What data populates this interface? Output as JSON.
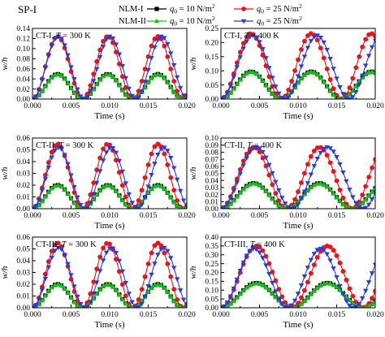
{
  "figure": {
    "title": "SP-I",
    "legend": {
      "row1_prefix": "NLM-I",
      "row2_prefix": "NLM-II",
      "entries": [
        {
          "label": "q0 = 10 N/m2",
          "model": "NLM-I",
          "color": "#000000",
          "marker": "square"
        },
        {
          "label": "q0 = 25 N/m2",
          "model": "NLM-I",
          "color": "#e8141b",
          "marker": "circle"
        },
        {
          "label": "q0 = 10 N/m2",
          "model": "NLM-II",
          "color": "#14c414",
          "marker": "triangle-up"
        },
        {
          "label": "q0 = 25 N/m2",
          "model": "NLM-II",
          "color": "#2a3bd8",
          "marker": "triangle-down"
        }
      ]
    },
    "ylabel": "w/h",
    "xlabel": "Time (s)"
  },
  "chart_data": [
    {
      "type": "line",
      "title": "CT-I, T = 300 K",
      "xlabel": "",
      "ylabel": "w/h",
      "xlim": [
        0,
        0.02
      ],
      "ylim": [
        0,
        0.15
      ],
      "xticks": [
        "0.000",
        "0.005",
        "0.010",
        "0.015",
        "0.020"
      ],
      "yticks": [
        "0.00",
        "0.02",
        "0.04",
        "0.06",
        "0.08",
        "0.10",
        "0.12",
        "0.14"
      ],
      "period_s": 0.0065,
      "series": [
        {
          "name": "NLM-I, q0 = 10 N/m2",
          "peak": 0.053,
          "period": 0.0065,
          "color": "#000000"
        },
        {
          "name": "NLM-I, q0 = 25 N/m2",
          "peak": 0.133,
          "period": 0.0065,
          "color": "#e8141b"
        },
        {
          "name": "NLM-II, q0 = 10 N/m2",
          "peak": 0.053,
          "period": 0.0065,
          "color": "#14c414"
        },
        {
          "name": "NLM-II, q0 = 25 N/m2",
          "peak": 0.133,
          "period": 0.0067,
          "color": "#2a3bd8"
        }
      ]
    },
    {
      "type": "line",
      "title": "CT-I, T = 400 K",
      "xlabel": "",
      "ylabel": "w/h",
      "xlim": [
        0,
        0.02
      ],
      "ylim": [
        0,
        0.25
      ],
      "xticks": [
        "0.000",
        "0.005",
        "0.010",
        "0.015",
        "0.020"
      ],
      "yticks": [
        "0.00",
        "0.05",
        "0.10",
        "0.15",
        "0.20",
        "0.25"
      ],
      "series": [
        {
          "name": "NLM-I, q0 = 10 N/m2",
          "peak": 0.097,
          "period": 0.0078,
          "color": "#000000"
        },
        {
          "name": "NLM-I, q0 = 25 N/m2",
          "peak": 0.232,
          "period": 0.0078,
          "color": "#e8141b"
        },
        {
          "name": "NLM-II, q0 = 10 N/m2",
          "peak": 0.097,
          "period": 0.0078,
          "color": "#14c414"
        },
        {
          "name": "NLM-II, q0 = 25 N/m2",
          "peak": 0.225,
          "period": 0.0083,
          "color": "#2a3bd8"
        }
      ]
    },
    {
      "type": "line",
      "title": "CT-II, T = 300 K",
      "xlabel": "",
      "ylabel": "w/h",
      "xlim": [
        0,
        0.02
      ],
      "ylim": [
        0,
        0.06
      ],
      "xticks": [
        "0.000",
        "0.005",
        "0.010",
        "0.015",
        "0.020"
      ],
      "yticks": [
        "0.00",
        "0.01",
        "0.02",
        "0.03",
        "0.04",
        "0.05",
        "0.06"
      ],
      "series": [
        {
          "name": "NLM-I, q0 = 10 N/m2",
          "peak": 0.02,
          "period": 0.0065,
          "color": "#000000"
        },
        {
          "name": "NLM-I, q0 = 25 N/m2",
          "peak": 0.055,
          "period": 0.0065,
          "color": "#e8141b"
        },
        {
          "name": "NLM-II, q0 = 10 N/m2",
          "peak": 0.02,
          "period": 0.0065,
          "color": "#14c414"
        },
        {
          "name": "NLM-II, q0 = 25 N/m2",
          "peak": 0.052,
          "period": 0.0068,
          "color": "#2a3bd8"
        }
      ]
    },
    {
      "type": "line",
      "title": "CT-II, T = 400 K",
      "xlabel": "",
      "ylabel": "w/h",
      "xlim": [
        0,
        0.02
      ],
      "ylim": [
        0,
        0.1
      ],
      "xticks": [
        "0.000",
        "0.005",
        "0.010",
        "0.015",
        "0.020"
      ],
      "yticks": [
        "0.00",
        "0.01",
        "0.02",
        "0.03",
        "0.04",
        "0.05",
        "0.06",
        "0.07",
        "0.08",
        "0.09",
        "0.10"
      ],
      "series": [
        {
          "name": "NLM-I, q0 = 10 N/m2",
          "peak": 0.036,
          "period": 0.0085,
          "color": "#000000"
        },
        {
          "name": "NLM-I, q0 = 25 N/m2",
          "peak": 0.087,
          "period": 0.0085,
          "color": "#e8141b"
        },
        {
          "name": "NLM-II, q0 = 10 N/m2",
          "peak": 0.036,
          "period": 0.0085,
          "color": "#14c414"
        },
        {
          "name": "NLM-II, q0 = 25 N/m2",
          "peak": 0.087,
          "period": 0.0092,
          "color": "#2a3bd8"
        }
      ]
    },
    {
      "type": "line",
      "title": "CT-III, T = 300 K",
      "xlabel": "Time (s)",
      "ylabel": "w/h",
      "xlim": [
        0,
        0.02
      ],
      "ylim": [
        0,
        0.06
      ],
      "xticks": [
        "0.000",
        "0.005",
        "0.010",
        "0.015",
        "0.020"
      ],
      "yticks": [
        "0.00",
        "0.01",
        "0.02",
        "0.03",
        "0.04",
        "0.05",
        "0.06"
      ],
      "series": [
        {
          "name": "NLM-I, q0 = 10 N/m2",
          "peak": 0.02,
          "period": 0.0065,
          "color": "#000000"
        },
        {
          "name": "NLM-I, q0 = 25 N/m2",
          "peak": 0.055,
          "period": 0.0065,
          "color": "#e8141b"
        },
        {
          "name": "NLM-II, q0 = 10 N/m2",
          "peak": 0.02,
          "period": 0.0065,
          "color": "#14c414"
        },
        {
          "name": "NLM-II, q0 = 25 N/m2",
          "peak": 0.051,
          "period": 0.0068,
          "color": "#2a3bd8"
        }
      ]
    },
    {
      "type": "line",
      "title": "CT-III, T = 400 K",
      "xlabel": "Time (s)",
      "ylabel": "w/h",
      "xlim": [
        0,
        0.02
      ],
      "ylim": [
        0,
        0.4
      ],
      "xticks": [
        "0.000",
        "0.005",
        "0.010",
        "0.015",
        "0.020"
      ],
      "yticks": [
        "0.00",
        "0.05",
        "0.10",
        "0.15",
        "0.20",
        "0.25",
        "0.30",
        "0.35",
        "0.40"
      ],
      "series": [
        {
          "name": "NLM-I, q0 = 10 N/m2",
          "peak": 0.14,
          "period": 0.0092,
          "color": "#000000"
        },
        {
          "name": "NLM-I, q0 = 25 N/m2",
          "peak": 0.35,
          "period": 0.0092,
          "color": "#e8141b"
        },
        {
          "name": "NLM-II, q0 = 10 N/m2",
          "peak": 0.14,
          "period": 0.0092,
          "color": "#14c414"
        },
        {
          "name": "NLM-II, q0 = 25 N/m2",
          "peak": 0.335,
          "period": 0.0086,
          "color": "#2a3bd8"
        }
      ]
    }
  ]
}
